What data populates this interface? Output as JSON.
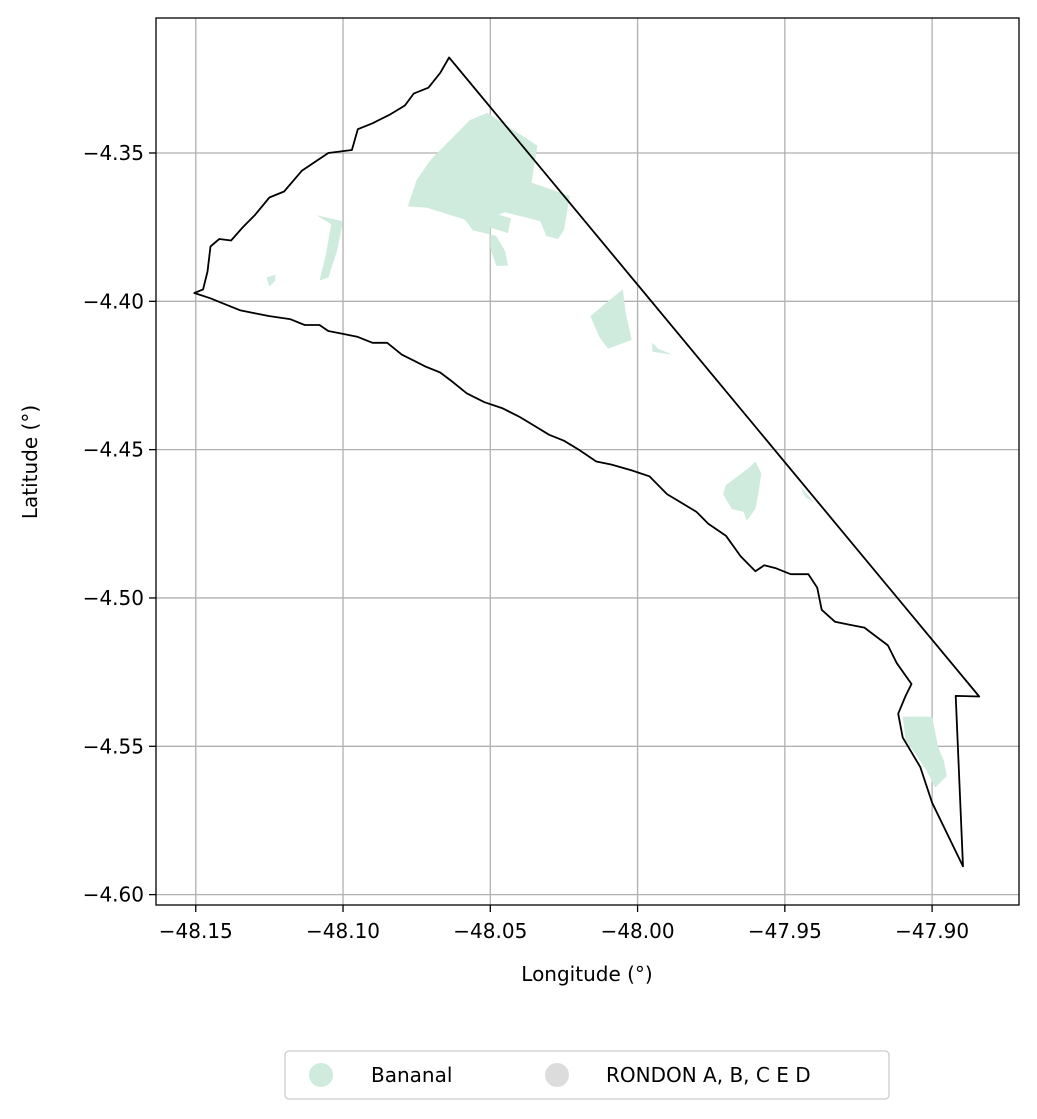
{
  "chart_data": {
    "type": "map",
    "xlabel": "Longitude (°)",
    "ylabel": "Latitude (°)",
    "xlim": [
      -48.1635,
      -47.8705
    ],
    "ylim": [
      -4.6035,
      -4.3045
    ],
    "grid": true,
    "x_ticks": [
      -48.15,
      -48.1,
      -48.05,
      -48.0,
      -47.95,
      -47.9
    ],
    "y_ticks": [
      -4.35,
      -4.4,
      -4.45,
      -4.5,
      -4.55,
      -4.6
    ],
    "x_tick_labels": [
      "−48.15",
      "−48.10",
      "−48.05",
      "−48.00",
      "−47.95",
      "−47.90"
    ],
    "y_tick_labels": [
      "−4.35",
      "−4.40",
      "−4.45",
      "−4.50",
      "−4.55",
      "−4.60"
    ],
    "legend": {
      "placement": "bottom-center",
      "entries": [
        {
          "label": "Bananal",
          "color": "#cfebdd"
        },
        {
          "label": "RONDON A, B, C E D",
          "color": "#dcdcdc"
        }
      ]
    },
    "boundary": {
      "stroke": "#000000",
      "points": [
        [
          -48.1505,
          -4.3972
        ],
        [
          -48.1475,
          -4.396
        ],
        [
          -48.146,
          -4.39
        ],
        [
          -48.145,
          -4.3815
        ],
        [
          -48.142,
          -4.379
        ],
        [
          -48.138,
          -4.3795
        ],
        [
          -48.134,
          -4.375
        ],
        [
          -48.13,
          -4.371
        ],
        [
          -48.125,
          -4.365
        ],
        [
          -48.12,
          -4.363
        ],
        [
          -48.114,
          -4.356
        ],
        [
          -48.105,
          -4.35
        ],
        [
          -48.097,
          -4.349
        ],
        [
          -48.095,
          -4.342
        ],
        [
          -48.09,
          -4.34
        ],
        [
          -48.084,
          -4.337
        ],
        [
          -48.079,
          -4.334
        ],
        [
          -48.076,
          -4.33
        ],
        [
          -48.071,
          -4.328
        ],
        [
          -48.067,
          -4.323
        ],
        [
          -48.064,
          -4.3178
        ],
        [
          -47.884,
          -4.5332
        ],
        [
          -47.892,
          -4.533
        ],
        [
          -47.8895,
          -4.5905
        ],
        [
          -47.9,
          -4.569
        ],
        [
          -47.904,
          -4.557
        ],
        [
          -47.91,
          -4.547
        ],
        [
          -47.9115,
          -4.539
        ],
        [
          -47.909,
          -4.533
        ],
        [
          -47.907,
          -4.529
        ],
        [
          -47.912,
          -4.522
        ],
        [
          -47.915,
          -4.516
        ],
        [
          -47.919,
          -4.513
        ],
        [
          -47.923,
          -4.51
        ],
        [
          -47.928,
          -4.509
        ],
        [
          -47.933,
          -4.508
        ],
        [
          -47.9375,
          -4.504
        ],
        [
          -47.939,
          -4.4965
        ],
        [
          -47.942,
          -4.492
        ],
        [
          -47.948,
          -4.492
        ],
        [
          -47.953,
          -4.49
        ],
        [
          -47.957,
          -4.489
        ],
        [
          -47.96,
          -4.491
        ],
        [
          -47.965,
          -4.486
        ],
        [
          -47.97,
          -4.479
        ],
        [
          -47.976,
          -4.475
        ],
        [
          -47.98,
          -4.471
        ],
        [
          -47.985,
          -4.468
        ],
        [
          -47.99,
          -4.465
        ],
        [
          -47.996,
          -4.459
        ],
        [
          -48.002,
          -4.457
        ],
        [
          -48.009,
          -4.455
        ],
        [
          -48.014,
          -4.454
        ],
        [
          -48.02,
          -4.45
        ],
        [
          -48.025,
          -4.447
        ],
        [
          -48.03,
          -4.445
        ],
        [
          -48.035,
          -4.442
        ],
        [
          -48.04,
          -4.439
        ],
        [
          -48.046,
          -4.436
        ],
        [
          -48.052,
          -4.434
        ],
        [
          -48.058,
          -4.431
        ],
        [
          -48.063,
          -4.427
        ],
        [
          -48.067,
          -4.424
        ],
        [
          -48.072,
          -4.422
        ],
        [
          -48.076,
          -4.42
        ],
        [
          -48.08,
          -4.418
        ],
        [
          -48.085,
          -4.414
        ],
        [
          -48.09,
          -4.414
        ],
        [
          -48.095,
          -4.412
        ],
        [
          -48.1,
          -4.411
        ],
        [
          -48.105,
          -4.41
        ],
        [
          -48.108,
          -4.408
        ],
        [
          -48.113,
          -4.408
        ],
        [
          -48.118,
          -4.406
        ],
        [
          -48.125,
          -4.405
        ],
        [
          -48.13,
          -4.404
        ],
        [
          -48.135,
          -4.403
        ],
        [
          -48.14,
          -4.401
        ],
        [
          -48.145,
          -4.399
        ],
        [
          -48.1505,
          -4.3972
        ]
      ]
    },
    "regions": [
      {
        "name": "Bananal",
        "fill": "#cfebdd",
        "polygons": [
          [
            [
              -48.051,
              -4.3365
            ],
            [
              -48.034,
              -4.3475
            ],
            [
              -48.036,
              -4.36
            ],
            [
              -48.023,
              -4.3645
            ],
            [
              -48.025,
              -4.376
            ],
            [
              -48.027,
              -4.379
            ],
            [
              -48.031,
              -4.378
            ],
            [
              -48.033,
              -4.373
            ],
            [
              -48.045,
              -4.37
            ],
            [
              -48.05,
              -4.372
            ],
            [
              -48.05,
              -4.382
            ],
            [
              -48.048,
              -4.388
            ],
            [
              -48.044,
              -4.388
            ],
            [
              -48.045,
              -4.383
            ],
            [
              -48.048,
              -4.378
            ],
            [
              -48.056,
              -4.376
            ],
            [
              -48.059,
              -4.372
            ],
            [
              -48.061,
              -4.371
            ],
            [
              -48.064,
              -4.369
            ],
            [
              -48.078,
              -4.368
            ],
            [
              -48.075,
              -4.359
            ],
            [
              -48.07,
              -4.352
            ],
            [
              -48.064,
              -4.346
            ],
            [
              -48.057,
              -4.339
            ]
          ],
          [
            [
              -48.072,
              -4.364
            ],
            [
              -48.043,
              -4.372
            ],
            [
              -48.044,
              -4.377
            ],
            [
              -48.073,
              -4.368
            ]
          ],
          [
            [
              -48.109,
              -4.371
            ],
            [
              -48.104,
              -4.374
            ],
            [
              -48.106,
              -4.385
            ],
            [
              -48.108,
              -4.393
            ],
            [
              -48.105,
              -4.392
            ],
            [
              -48.102,
              -4.383
            ],
            [
              -48.1,
              -4.373
            ]
          ],
          [
            [
              -48.123,
              -4.391
            ],
            [
              -48.126,
              -4.392
            ],
            [
              -48.125,
              -4.395
            ],
            [
              -48.123,
              -4.393
            ]
          ],
          [
            [
              -48.005,
              -4.396
            ],
            [
              -48.01,
              -4.4
            ],
            [
              -48.016,
              -4.405
            ],
            [
              -48.013,
              -4.412
            ],
            [
              -48.01,
              -4.416
            ],
            [
              -48.002,
              -4.413
            ],
            [
              -48.004,
              -4.404
            ]
          ],
          [
            [
              -47.995,
              -4.414
            ],
            [
              -47.993,
              -4.416
            ],
            [
              -47.988,
              -4.418
            ],
            [
              -47.995,
              -4.417
            ]
          ],
          [
            [
              -47.96,
              -4.454
            ],
            [
              -47.958,
              -4.458
            ],
            [
              -47.959,
              -4.465
            ],
            [
              -47.96,
              -4.47
            ],
            [
              -47.963,
              -4.474
            ],
            [
              -47.964,
              -4.471
            ],
            [
              -47.968,
              -4.47
            ],
            [
              -47.971,
              -4.465
            ],
            [
              -47.97,
              -4.462
            ],
            [
              -47.966,
              -4.459
            ],
            [
              -47.962,
              -4.456
            ]
          ],
          [
            [
              -47.945,
              -4.462
            ],
            [
              -47.94,
              -4.468
            ],
            [
              -47.943,
              -4.466
            ]
          ],
          [
            [
              -47.91,
              -4.54
            ],
            [
              -47.9,
              -4.54
            ],
            [
              -47.898,
              -4.55
            ],
            [
              -47.896,
              -4.555
            ],
            [
              -47.895,
              -4.56
            ],
            [
              -47.899,
              -4.564
            ],
            [
              -47.902,
              -4.558
            ],
            [
              -47.906,
              -4.552
            ],
            [
              -47.909,
              -4.548
            ]
          ]
        ]
      },
      {
        "name": "RONDON A, B, C E D",
        "fill": "#dcdcdc",
        "polygons": []
      }
    ]
  }
}
